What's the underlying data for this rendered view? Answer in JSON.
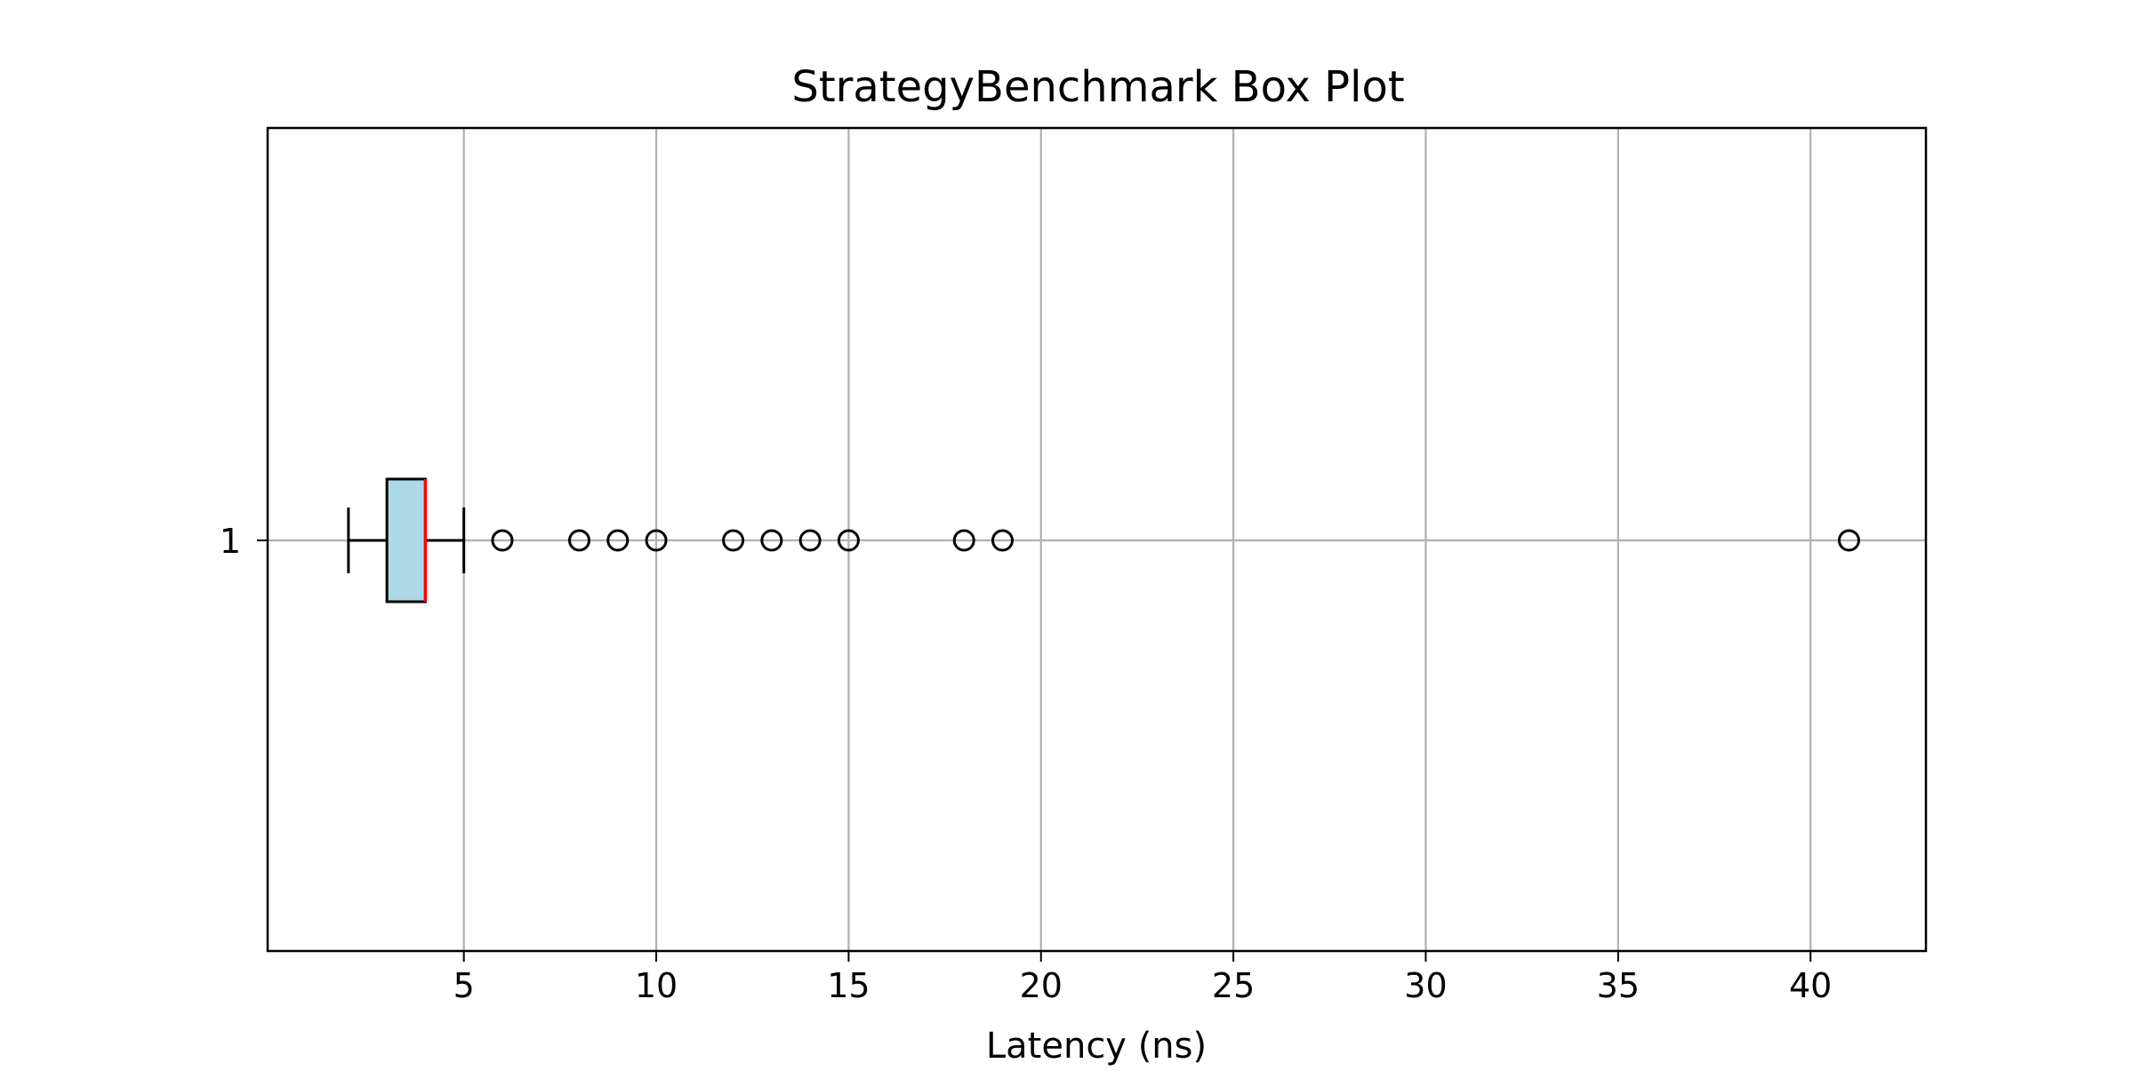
{
  "chart_data": {
    "type": "box",
    "title": "StrategyBenchmark Box Plot",
    "xlabel": "Latency (ns)",
    "ylabel": "",
    "orientation": "horizontal",
    "xlim": [
      -0.1,
      43
    ],
    "x_ticks": [
      5,
      10,
      15,
      20,
      25,
      30,
      35,
      40
    ],
    "y_ticks": [
      "1"
    ],
    "grid": true,
    "box": {
      "category": "1",
      "whisker_low": 2,
      "q1": 3,
      "median": 4,
      "q3": 4,
      "whisker_high": 5,
      "outliers": [
        6,
        8,
        9,
        10,
        12,
        13,
        14,
        15,
        18,
        19,
        41
      ]
    },
    "colors": {
      "box_fill": "#add8e6",
      "median_line": "#ff0000",
      "grid": "#b0b0b0",
      "outline": "#000000"
    }
  }
}
